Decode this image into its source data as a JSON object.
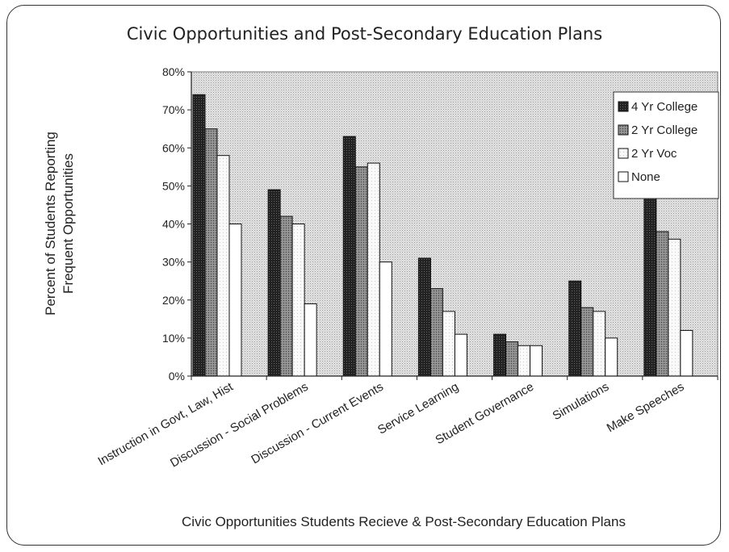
{
  "chart_data": {
    "type": "bar",
    "title": "Civic Opportunities and Post-Secondary Education Plans",
    "xlabel": "Civic Opportunities Students Recieve & Post-Secondary Education Plans",
    "ylabel": [
      "Percent of Students Reporting",
      "Frequent Opportunities"
    ],
    "ylim": [
      0,
      80
    ],
    "yticks": [
      "0%",
      "10%",
      "20%",
      "30%",
      "40%",
      "50%",
      "60%",
      "70%",
      "80%"
    ],
    "categories": [
      "Instruction in Govt, Law, Hist",
      "Discussion - Social Problems",
      "Discussion - Current Events",
      "Service Learning",
      "Student Governance",
      "Simulations",
      "Make Speeches"
    ],
    "series": [
      {
        "name": "4 Yr College",
        "values": [
          74,
          49,
          63,
          31,
          11,
          25,
          51
        ],
        "color": "#1a1a1a"
      },
      {
        "name": "2 Yr College",
        "values": [
          65,
          42,
          55,
          23,
          9,
          18,
          38
        ],
        "color": "#7a7a7a"
      },
      {
        "name": "2 Yr Voc",
        "values": [
          58,
          40,
          56,
          17,
          8,
          17,
          36
        ],
        "color": "#f2f2f2"
      },
      {
        "name": "None",
        "values": [
          40,
          19,
          30,
          11,
          8,
          10,
          12
        ],
        "color": "#ffffff"
      }
    ],
    "legend_position": "top-right",
    "grid": false
  }
}
